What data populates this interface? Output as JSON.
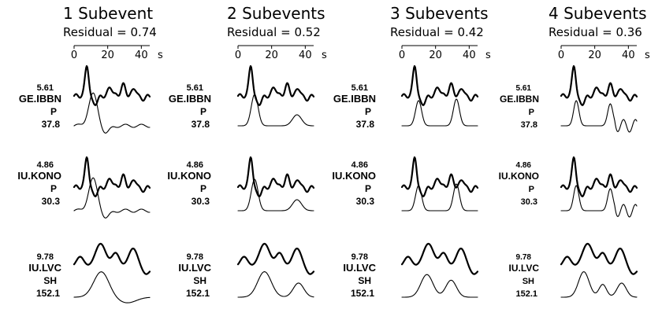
{
  "chart_data": {
    "type": "line",
    "panels": [
      {
        "title": "1 Subevent",
        "residual_label": "Residual = 0.74",
        "residual": 0.74
      },
      {
        "title": "2 Subevents",
        "residual_label": "Residual = 0.52",
        "residual": 0.52
      },
      {
        "title": "3 Subevents",
        "residual_label": "Residual = 0.42",
        "residual": 0.42
      },
      {
        "title": "4 Subevents",
        "residual_label": "Residual = 0.36",
        "residual": 0.36
      }
    ],
    "time_axis": {
      "ticks": [
        "0",
        "20",
        "40"
      ],
      "unit": "s",
      "range": [
        0,
        45
      ]
    },
    "stations": [
      {
        "amplitude": "5.61",
        "code": "GE.IBBN",
        "phase": "P",
        "azimuth": "37.8"
      },
      {
        "amplitude": "4.86",
        "code": "IU.KONO",
        "phase": "P",
        "azimuth": "30.3"
      },
      {
        "amplitude": "9.78",
        "code": "IU.LVC",
        "phase": "SH",
        "azimuth": "152.1"
      }
    ],
    "legend": "none",
    "grid": false
  }
}
